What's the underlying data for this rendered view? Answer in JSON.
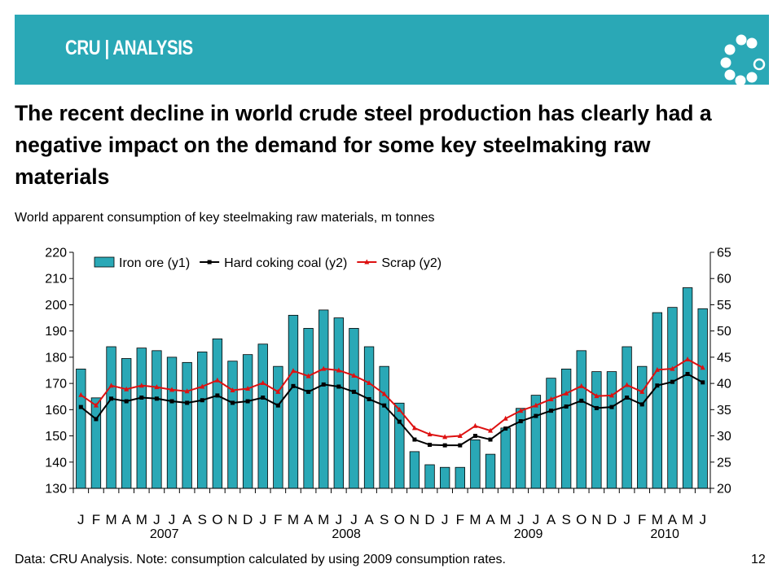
{
  "slide": {
    "logo_text": "CRU | ANALYSIS",
    "title": "The recent decline in world crude steel production has clearly had a negative impact on the demand for some key steelmaking raw materials",
    "subtitle": "World apparent consumption of key steelmaking raw materials, m tonnes",
    "footnote": "Data: CRU Analysis.  Note: consumption calculated by using 2009 consumption rates.",
    "page_number": "12",
    "colors": {
      "banner": "#2aa8b6",
      "text": "#000000",
      "background": "#ffffff"
    }
  },
  "chart_data": {
    "type": "bar+line",
    "title": "",
    "xlabel": "",
    "ylabel": "",
    "y1_lim": [
      130,
      220
    ],
    "y1_ticks": [
      130,
      140,
      150,
      160,
      170,
      180,
      190,
      200,
      210,
      220
    ],
    "y2_lim": [
      20,
      65
    ],
    "y2_ticks": [
      20,
      25,
      30,
      35,
      40,
      45,
      50,
      55,
      60,
      65
    ],
    "grid": false,
    "legend_position": "top",
    "categories": [
      "J",
      "F",
      "M",
      "A",
      "M",
      "J",
      "J",
      "A",
      "S",
      "O",
      "N",
      "D",
      "J",
      "F",
      "M",
      "A",
      "M",
      "J",
      "J",
      "A",
      "S",
      "O",
      "N",
      "D",
      "J",
      "F",
      "M",
      "A",
      "M",
      "J",
      "J",
      "A",
      "S",
      "O",
      "N",
      "D",
      "J",
      "F",
      "M",
      "A",
      "M",
      "J"
    ],
    "years": [
      {
        "label": "2007",
        "start_index": 0,
        "span": 12
      },
      {
        "label": "2008",
        "start_index": 12,
        "span": 12
      },
      {
        "label": "2009",
        "start_index": 24,
        "span": 12
      },
      {
        "label": "2010",
        "start_index": 36,
        "span": 6
      }
    ],
    "series": [
      {
        "name": "Iron ore (y1)",
        "kind": "bar",
        "axis": "y1",
        "color": "#2aa8b6",
        "stroke": "#000000",
        "values": [
          175.5,
          164.5,
          184,
          179.5,
          183.5,
          182.5,
          180,
          178,
          182,
          187,
          178.5,
          181,
          185,
          176.5,
          196,
          191,
          198,
          195,
          191,
          184,
          176.5,
          162.5,
          144,
          139,
          138,
          138,
          148.5,
          143,
          153,
          160.5,
          165.5,
          172,
          175.5,
          182.5,
          174.5,
          174.5,
          184,
          176.5,
          197,
          199,
          206.5,
          198.5
        ]
      },
      {
        "name": "Hard coking coal (y2)",
        "kind": "line",
        "axis": "y2",
        "color": "#000000",
        "marker": "square",
        "values": [
          35.5,
          33.2,
          37.1,
          36.6,
          37.3,
          37.1,
          36.6,
          36.3,
          36.8,
          37.7,
          36.3,
          36.6,
          37.3,
          35.8,
          39.5,
          38.4,
          39.8,
          39.4,
          38.4,
          37.0,
          35.8,
          32.7,
          29.3,
          28.3,
          28.2,
          28.2,
          30.0,
          29.3,
          31.4,
          32.8,
          33.8,
          34.8,
          35.6,
          36.7,
          35.3,
          35.5,
          37.3,
          36.0,
          39.6,
          40.3,
          41.8,
          40.2
        ]
      },
      {
        "name": "Scrap (y2)",
        "kind": "line",
        "axis": "y2",
        "color": "#dd1111",
        "marker": "triangle",
        "values": [
          37.8,
          35.8,
          39.6,
          38.9,
          39.6,
          39.3,
          38.8,
          38.5,
          39.4,
          40.6,
          38.7,
          39.0,
          40.1,
          38.4,
          42.4,
          41.4,
          42.8,
          42.5,
          41.5,
          40.1,
          38.0,
          35.0,
          31.5,
          30.3,
          29.8,
          30.0,
          31.9,
          31.0,
          33.3,
          34.8,
          35.8,
          37.0,
          38.1,
          39.5,
          37.6,
          37.7,
          39.7,
          38.4,
          42.6,
          42.8,
          44.6,
          43.0
        ]
      }
    ]
  }
}
